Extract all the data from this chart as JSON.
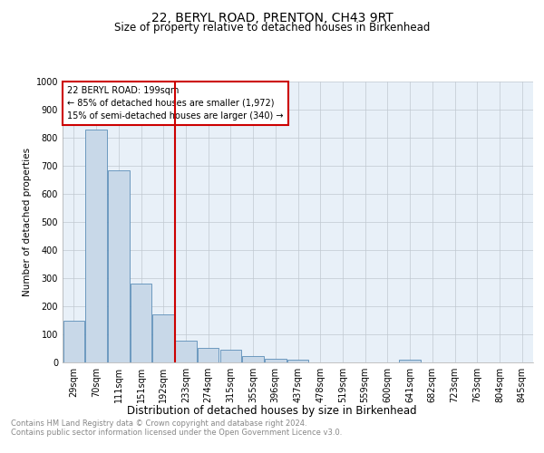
{
  "title": "22, BERYL ROAD, PRENTON, CH43 9RT",
  "subtitle": "Size of property relative to detached houses in Birkenhead",
  "xlabel": "Distribution of detached houses by size in Birkenhead",
  "ylabel": "Number of detached properties",
  "footnote1": "Contains HM Land Registry data © Crown copyright and database right 2024.",
  "footnote2": "Contains public sector information licensed under the Open Government Licence v3.0.",
  "annotation_line1": "22 BERYL ROAD: 199sqm",
  "annotation_line2": "← 85% of detached houses are smaller (1,972)",
  "annotation_line3": "15% of semi-detached houses are larger (340) →",
  "categories": [
    "29sqm",
    "70sqm",
    "111sqm",
    "151sqm",
    "192sqm",
    "233sqm",
    "274sqm",
    "315sqm",
    "355sqm",
    "396sqm",
    "437sqm",
    "478sqm",
    "519sqm",
    "559sqm",
    "600sqm",
    "641sqm",
    "682sqm",
    "723sqm",
    "763sqm",
    "804sqm",
    "845sqm"
  ],
  "values": [
    150,
    830,
    685,
    280,
    172,
    78,
    53,
    46,
    22,
    12,
    10,
    0,
    0,
    0,
    0,
    10,
    0,
    0,
    0,
    0,
    0
  ],
  "bar_color": "#c8d8e8",
  "bar_edge_color": "#5b8db8",
  "red_line_color": "#cc0000",
  "annotation_box_color": "#cc0000",
  "background_color": "#ffffff",
  "plot_bg_color": "#e8f0f8",
  "grid_color": "#c0c8d0",
  "ylim": [
    0,
    1000
  ],
  "yticks": [
    0,
    100,
    200,
    300,
    400,
    500,
    600,
    700,
    800,
    900,
    1000
  ],
  "title_fontsize": 10,
  "subtitle_fontsize": 8.5,
  "xlabel_fontsize": 8.5,
  "ylabel_fontsize": 7.5,
  "tick_fontsize": 7,
  "annotation_fontsize": 7,
  "footnote_fontsize": 6,
  "footnote_color": "#888888"
}
